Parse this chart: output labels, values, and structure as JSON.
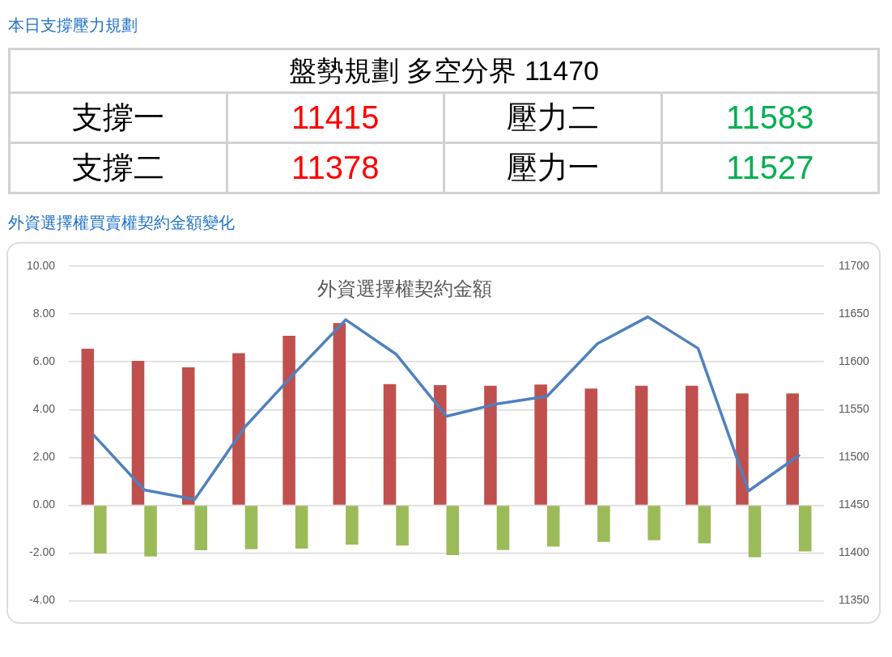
{
  "chart_data": [
    {
      "type": "other",
      "title": "本日支撐壓力規劃",
      "subtitle": "盤勢規劃 多空分界 11470",
      "categories": [
        "支撐一",
        "壓力二",
        "支撐二",
        "壓力一"
      ],
      "values": [
        11415,
        11583,
        11378,
        11527
      ],
      "colors": [
        "#ff0000",
        "#00b050",
        "#ff0000",
        "#00b050"
      ],
      "data_labels": true
    },
    {
      "type": "bar",
      "title": "外資選擇權買賣權契約金額變化",
      "subtitle": "外資選擇權契約金額",
      "categories": [
        null,
        null,
        null,
        null,
        null,
        null,
        null,
        null,
        null,
        null,
        null,
        null,
        null,
        null,
        null
      ],
      "series": [
        {
          "type": "bar",
          "color": "#c0504d",
          "values": [
            6.55,
            6.04,
            5.77,
            6.36,
            7.09,
            7.62,
            5.07,
            5.02,
            5.0,
            5.05,
            4.88,
            5.0,
            5.0,
            4.68,
            4.68
          ]
        },
        {
          "type": "bar",
          "color": "#9bbb59",
          "values": [
            -2.02,
            -2.14,
            -1.88,
            -1.84,
            -1.81,
            -1.65,
            -1.69,
            -2.08,
            -1.87,
            -1.73,
            -1.53,
            -1.47,
            -1.59,
            -2.18,
            -1.93
          ]
        },
        {
          "type": "line",
          "axis": "y2",
          "color": "#4f81bd",
          "values": [
            11523,
            11466,
            11456,
            11532,
            11589,
            11644,
            11608,
            11543,
            11556,
            11564,
            11619,
            11647,
            11614,
            11465,
            11502
          ]
        }
      ],
      "ylim": [
        -4,
        10
      ],
      "yticks": [
        {
          "value": -4,
          "label": "-4.00"
        },
        {
          "value": -2,
          "label": "-2.00"
        },
        {
          "value": 0,
          "label": "0.00"
        },
        {
          "value": 2,
          "label": "2.00"
        },
        {
          "value": 4,
          "label": "4.00"
        },
        {
          "value": 6,
          "label": "6.00"
        },
        {
          "value": 8,
          "label": "8.00"
        },
        {
          "value": 10,
          "label": "10.00"
        }
      ],
      "y2lim": [
        11350,
        11700
      ],
      "y2ticks": [
        11350,
        11400,
        11450,
        11500,
        11550,
        11600,
        11650,
        11700
      ],
      "grid": "y",
      "tick_labels": "y",
      "marker": "none",
      "line_style": "solid",
      "legend": false
    }
  ]
}
